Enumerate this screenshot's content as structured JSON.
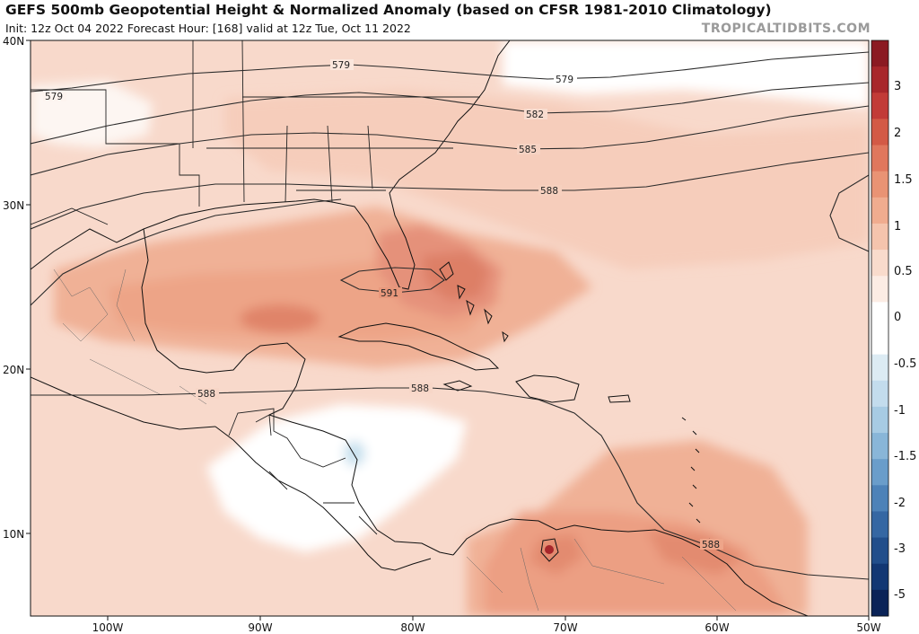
{
  "header": {
    "title": "GEFS 500mb Geopotential Height & Normalized Anomaly (based on CFSR 1981-2010 Climatology)",
    "subtitle": "Init: 12z Oct 04 2022   Forecast Hour: [168]   valid at 12z Tue, Oct 11 2022",
    "credit": "TROPICALTIDBITS.COM"
  },
  "map": {
    "lat_labels": [
      "40N",
      "30N",
      "20N",
      "10N"
    ],
    "lon_labels": [
      "100W",
      "90W",
      "80W",
      "70W",
      "60W",
      "50W"
    ],
    "contour_labels": [
      "579",
      "579",
      "579",
      "582",
      "585",
      "588",
      "591",
      "588",
      "588",
      "588"
    ],
    "colors": {
      "neutral": "#fbf2ee",
      "light": "#f8d9cb",
      "medium": "#f2b8a1",
      "strong": "#e99a7c",
      "peak": "#d8745d",
      "cool": "#bcdcea",
      "contour": "#2a2a2a",
      "border": "#111111"
    }
  },
  "colorbar": {
    "labels": [
      "3",
      "2",
      "1.5",
      "1",
      "0.5",
      "0",
      "-0.5",
      "-1",
      "-1.5",
      "-2",
      "-3",
      "-5"
    ],
    "colors": [
      "#8b1a22",
      "#a8272b",
      "#c23b37",
      "#d35a46",
      "#e0775d",
      "#e99374",
      "#f0ac8f",
      "#f5c4ad",
      "#f9dbcc",
      "#fcecE4",
      "#ffffff",
      "#ffffff",
      "#dcebf3",
      "#c3dced",
      "#a7cbe3",
      "#89b6d8",
      "#6a9dca",
      "#4d82b8",
      "#3567a3",
      "#214e8b",
      "#123773",
      "#0a2357"
    ]
  }
}
